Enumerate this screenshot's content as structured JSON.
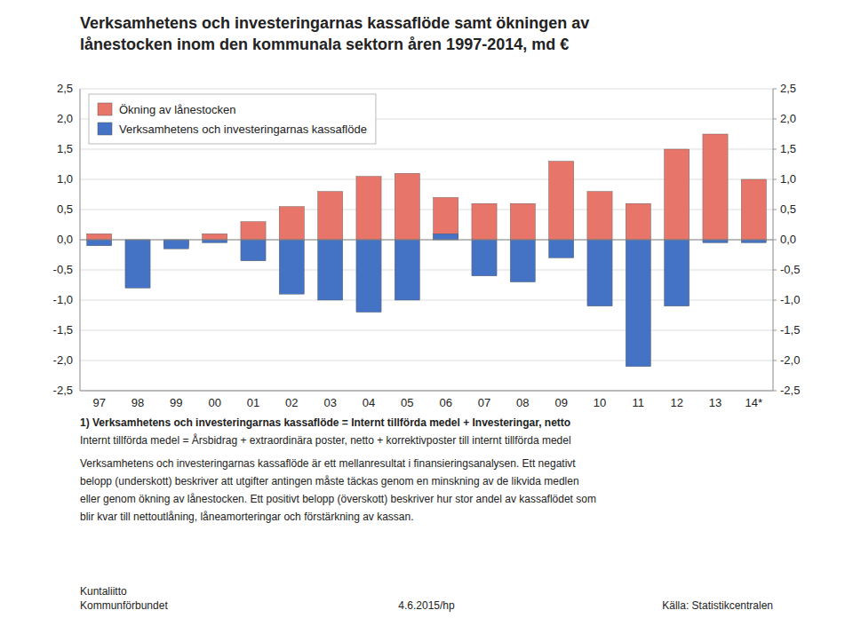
{
  "chart_data": {
    "type": "bar",
    "title": [
      "Verksamhetens och investeringarnas kassaflöde samt ökningen av",
      "lånestocken inom den kommunala sektorn åren 1997-2014, md €"
    ],
    "categories": [
      "97",
      "98",
      "99",
      "00",
      "01",
      "02",
      "03",
      "04",
      "05",
      "06",
      "07",
      "08",
      "09",
      "10",
      "11",
      "12",
      "13",
      "14*"
    ],
    "series": [
      {
        "name": "Ökning av lånestocken",
        "color": "#E8756A",
        "values": [
          0.1,
          0.0,
          -0.1,
          0.1,
          0.3,
          0.55,
          0.8,
          1.05,
          1.1,
          0.7,
          0.6,
          0.6,
          1.3,
          0.8,
          0.6,
          1.5,
          1.75,
          1.0
        ]
      },
      {
        "name": "Verksamhetens och investeringarnas kassaflöde",
        "color": "#4472C4",
        "values": [
          -0.1,
          -0.8,
          -0.15,
          -0.05,
          -0.35,
          -0.9,
          -1.0,
          -1.2,
          -1.0,
          0.1,
          -0.6,
          -0.7,
          -0.3,
          -1.1,
          -2.1,
          -1.1,
          -0.05,
          -0.05
        ]
      }
    ],
    "ylim": [
      -2.5,
      2.5
    ],
    "yticks": [
      {
        "value": -2.5,
        "label": "-2,5"
      },
      {
        "value": -2.0,
        "label": "-2,0"
      },
      {
        "value": -1.5,
        "label": "-1,5"
      },
      {
        "value": -1.0,
        "label": "-1,0"
      },
      {
        "value": -0.5,
        "label": "-0,5"
      },
      {
        "value": 0.0,
        "label": "0,0"
      },
      {
        "value": 0.5,
        "label": "0,5"
      },
      {
        "value": 1.0,
        "label": "1,0"
      },
      {
        "value": 1.5,
        "label": "1,5"
      },
      {
        "value": 2.0,
        "label": "2,0"
      },
      {
        "value": 2.5,
        "label": "2,5"
      }
    ],
    "y2lim": [
      -2.5,
      2.5
    ],
    "y2ticks": [
      {
        "value": -2.5,
        "label": "-2,5"
      },
      {
        "value": -2.0,
        "label": "-2,0"
      },
      {
        "value": -1.5,
        "label": "-1,5"
      },
      {
        "value": -1.0,
        "label": "-1,0"
      },
      {
        "value": -0.5,
        "label": "-0,5"
      },
      {
        "value": 0.0,
        "label": "0,0"
      },
      {
        "value": 0.5,
        "label": "0,5"
      },
      {
        "value": 1.0,
        "label": "1,0"
      },
      {
        "value": 1.5,
        "label": "1,5"
      },
      {
        "value": 2.0,
        "label": "2,0"
      },
      {
        "value": 2.5,
        "label": "2,5"
      }
    ],
    "grid": true,
    "legend": "upper left",
    "footnotes": [
      "1) Verksamhetens och investeringarnas kassaflöde = Internt tillförda medel + Investeringar, netto",
      "Internt tillförda medel = Årsbidrag + extraordinära poster, netto + korrektivposter till internt tillförda medel",
      "Verksamhetens och investeringarnas kassaflöde är ett mellanresultat i finansieringsanalysen. Ett negativt",
      "belopp (underskott) beskriver att utgifter antingen måste täckas genom en minskning av de likvida medlen",
      "eller genom ökning av lånestocken. Ett positivt belopp (överskott) beskriver hur stor andel av kassaflödet som",
      "blir kvar till nettoutlåning, låneamorteringar och förstärkning av kassan."
    ],
    "logo_lines": [
      "Kuntaliitto",
      "Kommunförbundet"
    ],
    "date": "4.6.2015/hp",
    "source": "Källa: Statistikcentralen"
  }
}
